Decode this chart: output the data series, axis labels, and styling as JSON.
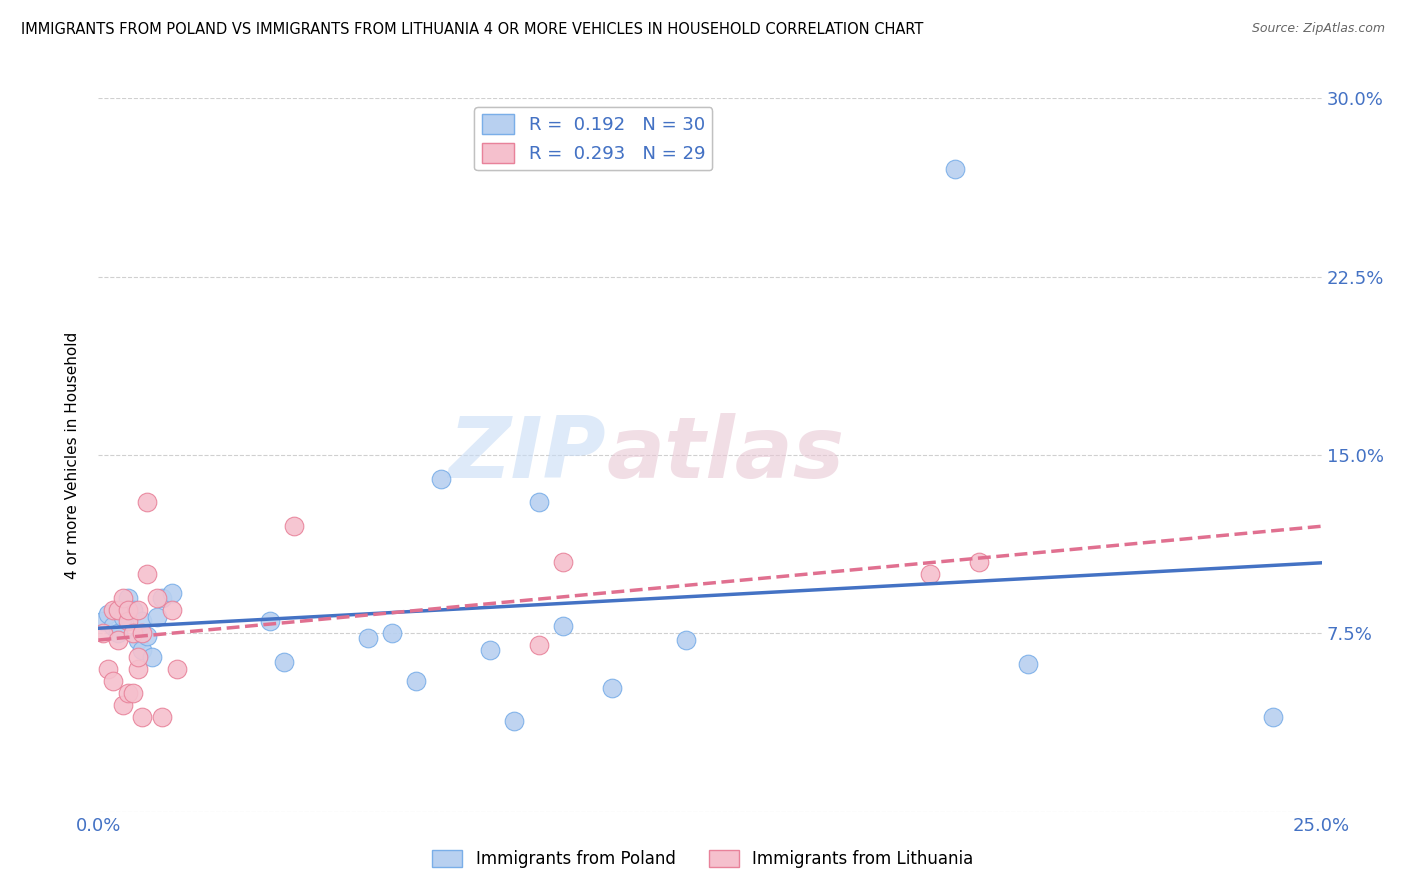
{
  "title": "IMMIGRANTS FROM POLAND VS IMMIGRANTS FROM LITHUANIA 4 OR MORE VEHICLES IN HOUSEHOLD CORRELATION CHART",
  "source": "Source: ZipAtlas.com",
  "ylabel": "4 or more Vehicles in Household",
  "xlim": [
    0.0,
    0.25
  ],
  "ylim": [
    0.0,
    0.3
  ],
  "xticks": [
    0.0,
    0.05,
    0.1,
    0.15,
    0.2,
    0.25
  ],
  "xticklabels": [
    "0.0%",
    "",
    "",
    "",
    "",
    "25.0%"
  ],
  "yticks_right": [
    0.0,
    0.075,
    0.15,
    0.225,
    0.3
  ],
  "yticklabels_right": [
    "",
    "7.5%",
    "15.0%",
    "22.5%",
    "30.0%"
  ],
  "poland_color": "#b8d0f0",
  "poland_edge_color": "#7aaee8",
  "poland_line_color": "#4472c4",
  "lithuania_color": "#f5c0cd",
  "lithuania_edge_color": "#e8829a",
  "lithuania_line_color": "#e07090",
  "poland_R": 0.192,
  "poland_N": 30,
  "lithuania_R": 0.293,
  "lithuania_N": 29,
  "poland_x": [
    0.001,
    0.002,
    0.003,
    0.004,
    0.005,
    0.006,
    0.007,
    0.008,
    0.009,
    0.009,
    0.01,
    0.011,
    0.012,
    0.013,
    0.015,
    0.035,
    0.038,
    0.055,
    0.06,
    0.065,
    0.07,
    0.08,
    0.085,
    0.09,
    0.095,
    0.105,
    0.12,
    0.175,
    0.19,
    0.24
  ],
  "poland_y": [
    0.08,
    0.083,
    0.078,
    0.075,
    0.082,
    0.09,
    0.085,
    0.072,
    0.08,
    0.068,
    0.074,
    0.065,
    0.082,
    0.09,
    0.092,
    0.08,
    0.063,
    0.073,
    0.075,
    0.055,
    0.14,
    0.068,
    0.038,
    0.13,
    0.078,
    0.052,
    0.072,
    0.27,
    0.062,
    0.04
  ],
  "lithuania_x": [
    0.001,
    0.002,
    0.003,
    0.003,
    0.004,
    0.004,
    0.005,
    0.005,
    0.006,
    0.006,
    0.006,
    0.007,
    0.007,
    0.008,
    0.008,
    0.008,
    0.009,
    0.009,
    0.01,
    0.01,
    0.012,
    0.013,
    0.015,
    0.016,
    0.04,
    0.09,
    0.095,
    0.17,
    0.18
  ],
  "lithuania_y": [
    0.075,
    0.06,
    0.085,
    0.055,
    0.085,
    0.072,
    0.09,
    0.045,
    0.05,
    0.08,
    0.085,
    0.075,
    0.05,
    0.085,
    0.06,
    0.065,
    0.075,
    0.04,
    0.1,
    0.13,
    0.09,
    0.04,
    0.085,
    0.06,
    0.12,
    0.07,
    0.105,
    0.1,
    0.105
  ],
  "background_color": "#ffffff",
  "watermark_zip": "ZIP",
  "watermark_atlas": "atlas",
  "grid_color": "#d0d0d0"
}
